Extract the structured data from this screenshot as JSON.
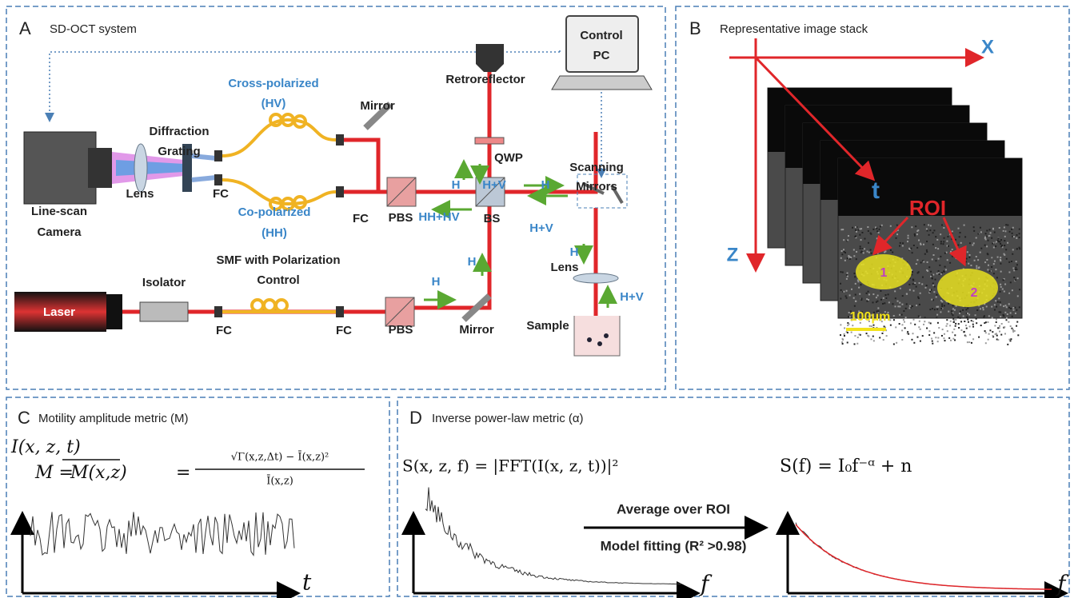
{
  "panels": {
    "a": {
      "letter": "A",
      "title": "SD-OCT system",
      "labels": [
        "Control",
        "PC",
        "Retroreflector",
        "Cross-polarized",
        "(HV)",
        "Mirror",
        "Diffraction",
        "Grating",
        "QWP",
        "Scanning",
        "Mirrors",
        "H",
        "H+V",
        "H",
        "Lens",
        "FC",
        "Line-scan",
        "Camera",
        "FC",
        "PBS",
        "HH+HV",
        "BS",
        "H+V",
        "Co-polarized",
        "(HH)",
        "H",
        "SMF with Polarization",
        "Control",
        "H",
        "Lens",
        "H+V",
        "Isolator",
        "H",
        "Sample",
        "Laser",
        "FC",
        "FC",
        "PBS",
        "Mirror"
      ]
    },
    "b": {
      "letter": "B",
      "title": "Representative image stack",
      "labels": [
        "X",
        "Z",
        "t",
        "ROI",
        "1",
        "2",
        "100μm"
      ]
    },
    "c": {
      "letter": "C",
      "title": "Motility amplitude metric (M)",
      "signal": "I(x, z, t)",
      "lhs": "M =",
      "mean": "M(x,z)",
      "eq": "=",
      "numerator": "√Γ(x,z,Δt) − Ī(x,z)²",
      "denominator": "Ī(x,z)",
      "axis": "t"
    },
    "d": {
      "letter": "D",
      "title": "Inverse power-law metric (α)",
      "spectrum": "S(x, z, f) = |FFT(I(x, z, t))|²",
      "model": "S(f) = I₀f⁻ᵅ + n",
      "step1": "Average over ROI",
      "step2": "Model fitting (R² >0.98)",
      "axis1": "f",
      "axis2": "f"
    }
  }
}
